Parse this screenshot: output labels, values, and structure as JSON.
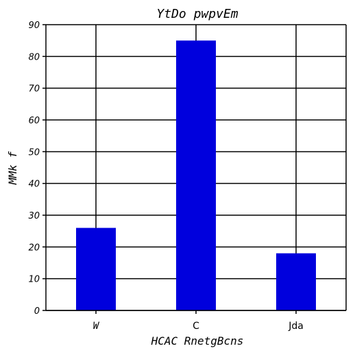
{
  "chart_data": {
    "type": "bar",
    "title": "YtDo pwpvEm",
    "xlabel": "HCAC RnetgBcns",
    "ylabel": "MMk f",
    "categories": [
      "W",
      "C",
      "Jda"
    ],
    "values": [
      26,
      85,
      18
    ],
    "ylim": [
      0,
      90
    ],
    "yticks": [
      0,
      10,
      20,
      30,
      40,
      50,
      60,
      70,
      80,
      90
    ],
    "grid": true,
    "bar_color": "#0000dd",
    "grid_color": "#000000"
  }
}
